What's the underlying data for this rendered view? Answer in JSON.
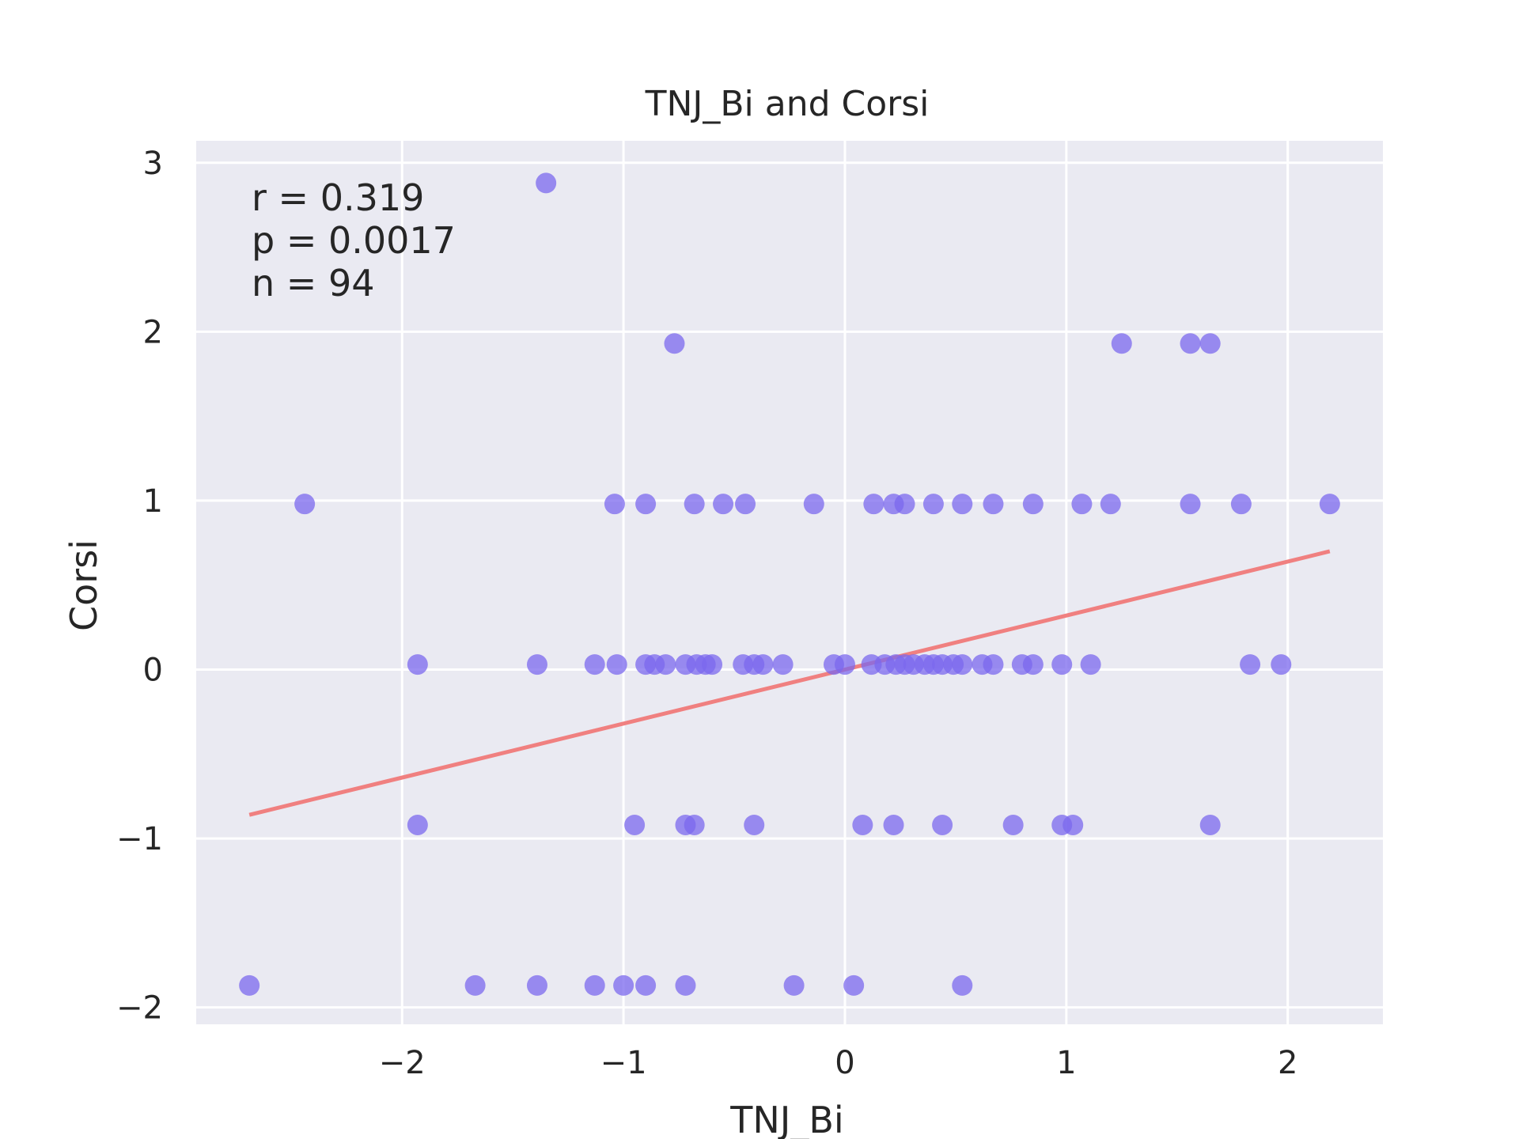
{
  "chart_data": {
    "type": "scatter",
    "title": "TNJ_Bi and Corsi",
    "xlabel": "TNJ_Bi",
    "ylabel": "Corsi",
    "xlim": [
      -2.93,
      2.43
    ],
    "ylim": [
      -2.1,
      3.13
    ],
    "xticks": [
      -2,
      -1,
      0,
      1,
      2
    ],
    "xtick_labels": [
      "−2",
      "−1",
      "0",
      "1",
      "2"
    ],
    "yticks": [
      -2,
      -1,
      0,
      1,
      2,
      3
    ],
    "ytick_labels": [
      "−2",
      "−1",
      "0",
      "1",
      "2",
      "3"
    ],
    "grid": true,
    "annotations": [
      "r = 0.319",
      "p = 0.0017",
      "n = 94"
    ],
    "colors": {
      "background": "#eaeaf2",
      "grid": "#ffffff",
      "points": "#7b68ee",
      "regression_line": "#f08080"
    },
    "regression_line": {
      "x": [
        -2.69,
        2.19
      ],
      "y": [
        -0.86,
        0.7
      ]
    },
    "points": [
      {
        "x": -1.35,
        "y": 2.88
      },
      {
        "x": -0.77,
        "y": 1.93
      },
      {
        "x": 1.25,
        "y": 1.93
      },
      {
        "x": 1.56,
        "y": 1.93
      },
      {
        "x": 1.65,
        "y": 1.93
      },
      {
        "x": -2.44,
        "y": 0.98
      },
      {
        "x": -1.04,
        "y": 0.98
      },
      {
        "x": -0.9,
        "y": 0.98
      },
      {
        "x": -0.68,
        "y": 0.98
      },
      {
        "x": -0.55,
        "y": 0.98
      },
      {
        "x": -0.45,
        "y": 0.98
      },
      {
        "x": -0.14,
        "y": 0.98
      },
      {
        "x": 0.13,
        "y": 0.98
      },
      {
        "x": 0.22,
        "y": 0.98
      },
      {
        "x": 0.27,
        "y": 0.98
      },
      {
        "x": 0.4,
        "y": 0.98
      },
      {
        "x": 0.53,
        "y": 0.98
      },
      {
        "x": 0.67,
        "y": 0.98
      },
      {
        "x": 0.85,
        "y": 0.98
      },
      {
        "x": 1.07,
        "y": 0.98
      },
      {
        "x": 1.2,
        "y": 0.98
      },
      {
        "x": 1.56,
        "y": 0.98
      },
      {
        "x": 1.79,
        "y": 0.98
      },
      {
        "x": 2.19,
        "y": 0.98
      },
      {
        "x": -1.93,
        "y": 0.03
      },
      {
        "x": -1.39,
        "y": 0.03
      },
      {
        "x": -1.13,
        "y": 0.03
      },
      {
        "x": -1.03,
        "y": 0.03
      },
      {
        "x": -0.9,
        "y": 0.03
      },
      {
        "x": -0.86,
        "y": 0.03
      },
      {
        "x": -0.81,
        "y": 0.03
      },
      {
        "x": -0.72,
        "y": 0.03
      },
      {
        "x": -0.67,
        "y": 0.03
      },
      {
        "x": -0.63,
        "y": 0.03
      },
      {
        "x": -0.6,
        "y": 0.03
      },
      {
        "x": -0.46,
        "y": 0.03
      },
      {
        "x": -0.41,
        "y": 0.03
      },
      {
        "x": -0.37,
        "y": 0.03
      },
      {
        "x": -0.28,
        "y": 0.03
      },
      {
        "x": -0.05,
        "y": 0.03
      },
      {
        "x": 0.0,
        "y": 0.03
      },
      {
        "x": 0.12,
        "y": 0.03
      },
      {
        "x": 0.18,
        "y": 0.03
      },
      {
        "x": 0.23,
        "y": 0.03
      },
      {
        "x": 0.27,
        "y": 0.03
      },
      {
        "x": 0.31,
        "y": 0.03
      },
      {
        "x": 0.36,
        "y": 0.03
      },
      {
        "x": 0.4,
        "y": 0.03
      },
      {
        "x": 0.44,
        "y": 0.03
      },
      {
        "x": 0.49,
        "y": 0.03
      },
      {
        "x": 0.53,
        "y": 0.03
      },
      {
        "x": 0.62,
        "y": 0.03
      },
      {
        "x": 0.67,
        "y": 0.03
      },
      {
        "x": 0.8,
        "y": 0.03
      },
      {
        "x": 0.85,
        "y": 0.03
      },
      {
        "x": 0.98,
        "y": 0.03
      },
      {
        "x": 1.11,
        "y": 0.03
      },
      {
        "x": 1.83,
        "y": 0.03
      },
      {
        "x": 1.97,
        "y": 0.03
      },
      {
        "x": -1.93,
        "y": -0.92
      },
      {
        "x": -0.95,
        "y": -0.92
      },
      {
        "x": -0.72,
        "y": -0.92
      },
      {
        "x": -0.68,
        "y": -0.92
      },
      {
        "x": -0.41,
        "y": -0.92
      },
      {
        "x": 0.08,
        "y": -0.92
      },
      {
        "x": 0.22,
        "y": -0.92
      },
      {
        "x": 0.44,
        "y": -0.92
      },
      {
        "x": 0.76,
        "y": -0.92
      },
      {
        "x": 0.98,
        "y": -0.92
      },
      {
        "x": 1.03,
        "y": -0.92
      },
      {
        "x": 1.65,
        "y": -0.92
      },
      {
        "x": -2.69,
        "y": -1.87
      },
      {
        "x": -1.67,
        "y": -1.87
      },
      {
        "x": -1.39,
        "y": -1.87
      },
      {
        "x": -1.13,
        "y": -1.87
      },
      {
        "x": -1.0,
        "y": -1.87
      },
      {
        "x": -0.9,
        "y": -1.87
      },
      {
        "x": -0.72,
        "y": -1.87
      },
      {
        "x": -0.23,
        "y": -1.87
      },
      {
        "x": 0.04,
        "y": -1.87
      },
      {
        "x": 0.53,
        "y": -1.87
      }
    ]
  }
}
